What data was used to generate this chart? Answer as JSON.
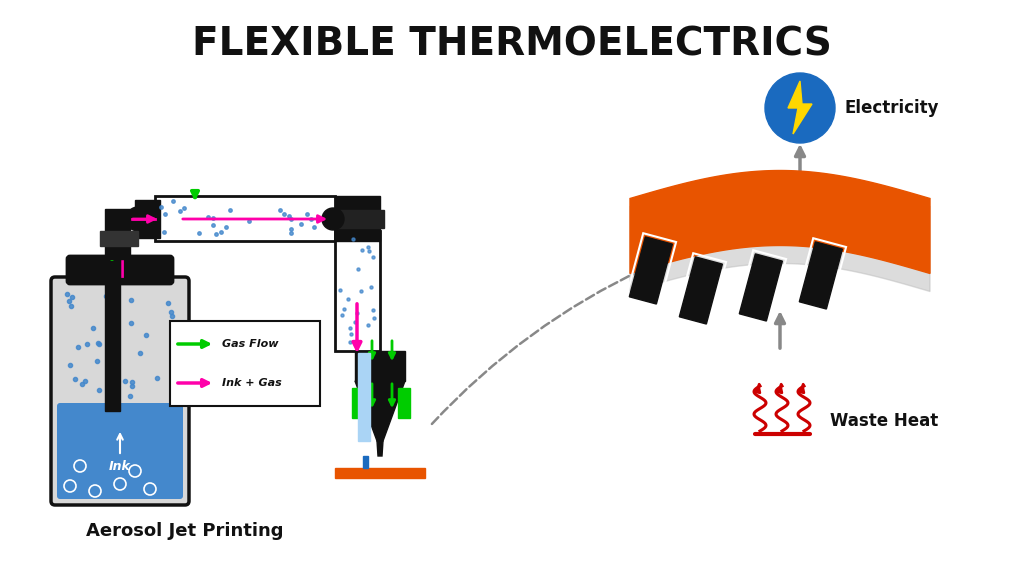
{
  "title": "FLEXIBLE THERMOELECTRICS",
  "title_fontsize": 28,
  "title_fontweight": "bold",
  "bg_color": "#ffffff",
  "label_aerosol": "Aerosol Jet Printing",
  "label_electricity": "Electricity",
  "label_waste_heat": "Waste Heat",
  "label_ink": "Ink",
  "label_gas_flow": "Gas Flow",
  "label_ink_gas": "Ink + Gas",
  "color_black": "#111111",
  "color_orange": "#E85400",
  "color_blue": "#1a6abf",
  "color_green": "#00cc00",
  "color_magenta": "#ff00aa",
  "color_gray": "#888888",
  "color_red": "#cc0000",
  "color_ink_blue": "#4488cc",
  "color_light_blue": "#aad4f5",
  "color_shadow": "#bbbbbb"
}
